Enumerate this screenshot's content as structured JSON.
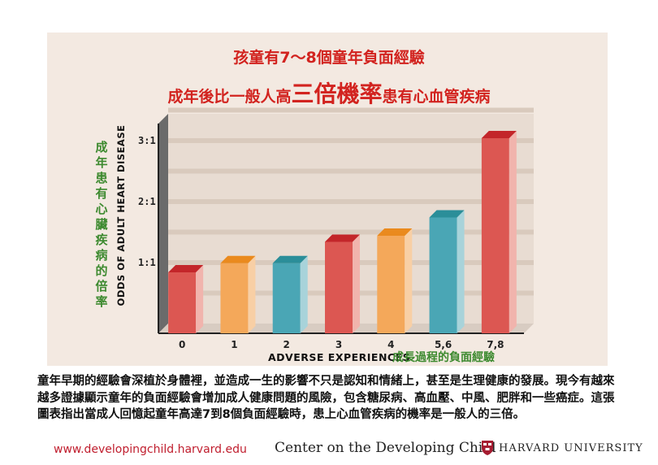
{
  "title_line1": "孩童有7～8個童年負面經驗",
  "title_line2_pre": "成年後比一般人高",
  "title_line2_big": "三倍機率",
  "title_line2_post": "患有心血管疾病",
  "y_label_cn": "成年患有心臟疾病的倍率",
  "description": "童年早期的經驗會深植於身體裡，並造成一生的影響不只是認知和情緒上，甚至是生理健康的發展。現今有越來越多證據顯示童年的負面經驗會增加成人健康問題的風險，包含糖尿病、高血壓、中風、肥胖和一些癌症。這張圖表指出當成人回憶起童年高達7到8個負面經驗時，患上心血管疾病的機率是一般人的三倍。",
  "footer": {
    "url": "www.developingchild.harvard.edu",
    "center": "Center on the Developing Child",
    "harvard": "HARVARD UNIVERSITY"
  },
  "colors": {
    "title": "#d2231f",
    "green_text": "#3d8a2f",
    "red": "#dc5752",
    "orange": "#f4a85a",
    "teal": "#4aa6b5",
    "panel": "#f3e9e1"
  },
  "chart_data": {
    "type": "bar",
    "categories": [
      "0",
      "1",
      "2",
      "3",
      "4",
      "5,6",
      "7,8"
    ],
    "values": [
      1.0,
      1.15,
      1.15,
      1.5,
      1.6,
      1.9,
      3.2
    ],
    "bar_colors": [
      "red",
      "orange",
      "teal",
      "red",
      "orange",
      "teal",
      "red"
    ],
    "y_ticks": [
      {
        "v": 1,
        "label": "1:1"
      },
      {
        "v": 2,
        "label": "2:1"
      },
      {
        "v": 3,
        "label": "3:1"
      }
    ],
    "ylabel": "ODDS OF ADULT HEART DISEASE",
    "xlabel": "ADVERSE EXPERIENCES",
    "xlabel_cn": "成長過程的負面經驗",
    "ylim": [
      0,
      3.6
    ],
    "grid": true
  }
}
